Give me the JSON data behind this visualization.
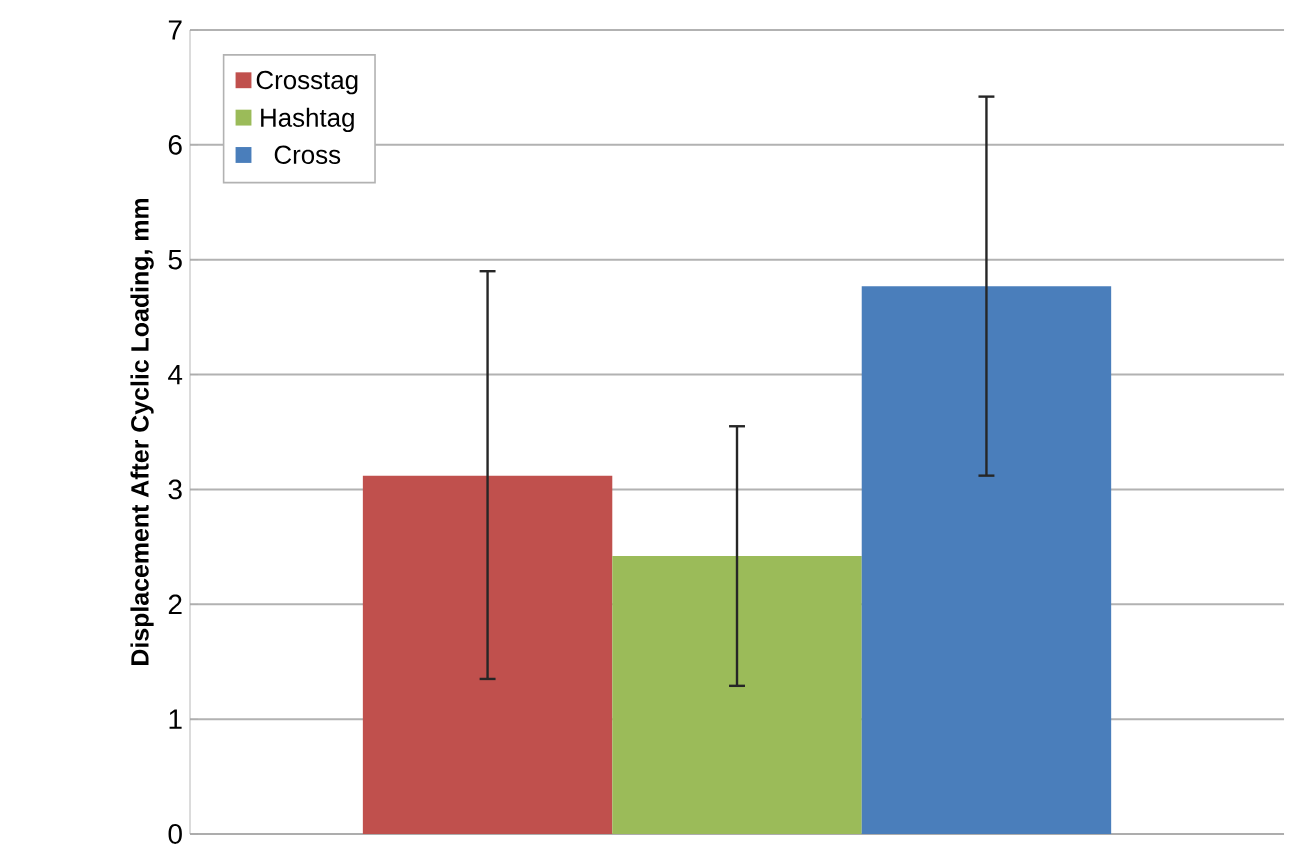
{
  "chart_data": {
    "type": "bar",
    "ylabel": "Displacement After Cyclic Loading, mm",
    "categories": [
      null
    ],
    "series": [
      {
        "name": "Crosstag",
        "color": "#c0504d",
        "values": [
          3.12
        ],
        "errors": [
          [
            1.35,
            4.9
          ]
        ]
      },
      {
        "name": "Hashtag",
        "color": "#9bbb59",
        "values": [
          2.42
        ],
        "errors": [
          [
            1.29,
            3.55
          ]
        ]
      },
      {
        "name": "Cross",
        "color": "#4a7ebb",
        "values": [
          4.77
        ],
        "errors": [
          [
            3.12,
            6.42
          ]
        ]
      }
    ],
    "ylim": [
      0,
      7
    ],
    "yticks": [
      0,
      1,
      2,
      3,
      4,
      5,
      6,
      7
    ],
    "grid": "y",
    "legend": "top left"
  }
}
